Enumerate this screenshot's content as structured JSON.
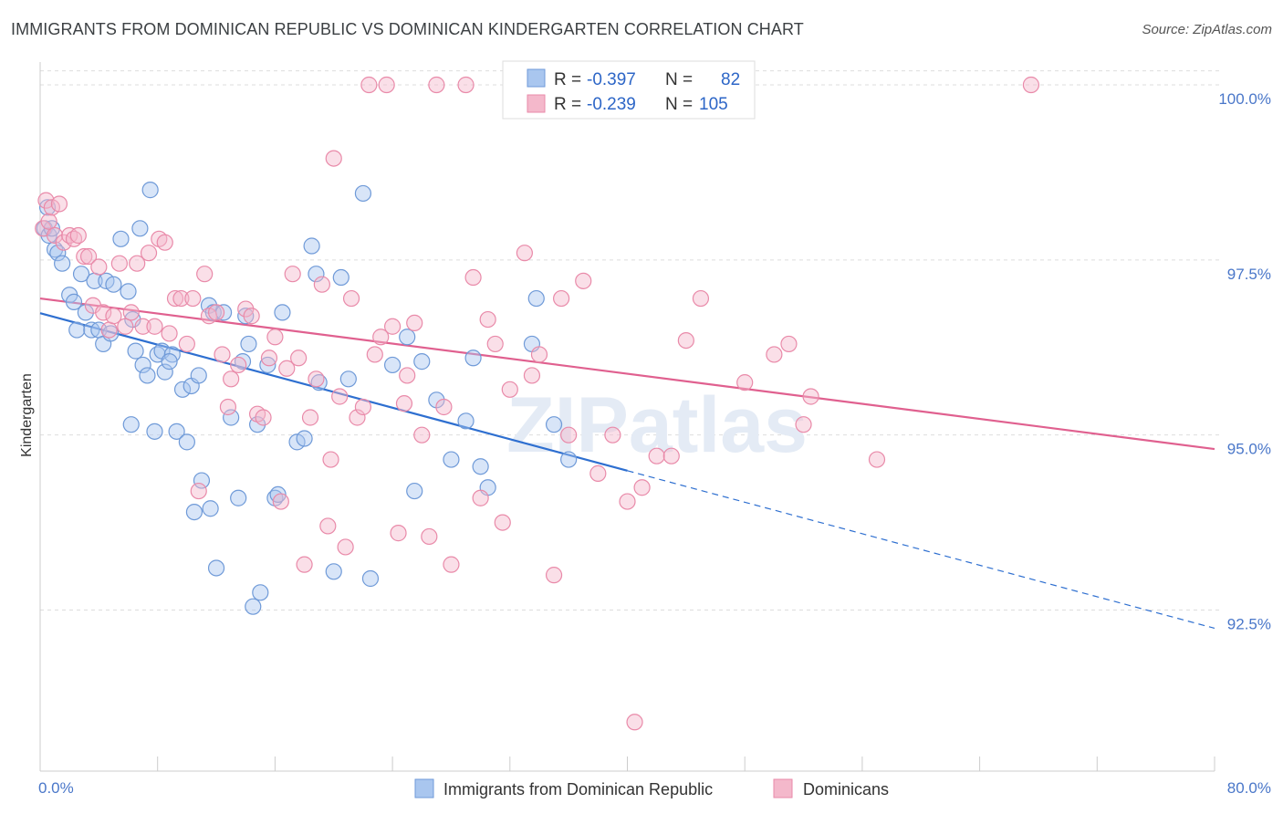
{
  "title": "IMMIGRANTS FROM DOMINICAN REPUBLIC VS DOMINICAN KINDERGARTEN CORRELATION CHART",
  "source": "Source: ZipAtlas.com",
  "watermark": "ZIPatlas",
  "colors": {
    "blue_fill": "#a9c6ef",
    "blue_stroke": "#6f9ad8",
    "blue_line": "#2e6fd0",
    "pink_fill": "#f4b8cb",
    "pink_stroke": "#e98aa9",
    "pink_line": "#e0608f",
    "tick_text": "#4a77c9",
    "grid": "#dddddd"
  },
  "legend": {
    "blue": {
      "r_label": "R =",
      "r_value": "-0.397",
      "n_label": "N =",
      "n_value": "82"
    },
    "pink": {
      "r_label": "R =",
      "r_value": "-0.239",
      "n_label": "N =",
      "n_value": "105"
    }
  },
  "bottom_legend": {
    "blue": "Immigrants from Dominican Republic",
    "pink": "Dominicans"
  },
  "chart_data": {
    "type": "scatter",
    "xlabel": "",
    "ylabel": "Kindergarten",
    "xlim": [
      0,
      80
    ],
    "ylim": [
      90.2,
      100.3
    ],
    "x_tick_labels": [
      "0.0%",
      "80.0%"
    ],
    "y_ticks": [
      92.5,
      95.0,
      97.5,
      100.0
    ],
    "y_tick_labels": [
      "92.5%",
      "95.0%",
      "97.5%",
      "100.0%"
    ],
    "grid": "horizontal dashed",
    "legend_position": "top-center",
    "series": [
      {
        "name": "Immigrants from Dominican Republic",
        "color": "#6f9ad8",
        "trend": {
          "x": [
            0,
            40
          ],
          "y": [
            96.74,
            94.49
          ],
          "extended_to": [
            80,
            92.24
          ]
        },
        "points": [
          [
            0.3,
            97.95
          ],
          [
            0.5,
            98.25
          ],
          [
            0.6,
            97.85
          ],
          [
            0.8,
            97.95
          ],
          [
            1.0,
            97.65
          ],
          [
            1.2,
            97.6
          ],
          [
            1.5,
            97.45
          ],
          [
            2.0,
            97.0
          ],
          [
            2.3,
            96.9
          ],
          [
            2.5,
            96.5
          ],
          [
            2.8,
            97.3
          ],
          [
            3.1,
            96.75
          ],
          [
            3.5,
            96.5
          ],
          [
            3.7,
            97.2
          ],
          [
            4.0,
            96.5
          ],
          [
            4.3,
            96.3
          ],
          [
            4.5,
            97.2
          ],
          [
            4.8,
            96.45
          ],
          [
            5.0,
            97.15
          ],
          [
            5.5,
            97.8
          ],
          [
            6.0,
            97.05
          ],
          [
            6.3,
            96.65
          ],
          [
            6.5,
            96.2
          ],
          [
            6.8,
            97.95
          ],
          [
            7.0,
            96.0
          ],
          [
            7.3,
            95.85
          ],
          [
            7.5,
            98.5
          ],
          [
            7.8,
            95.05
          ],
          [
            8.0,
            96.15
          ],
          [
            8.3,
            96.2
          ],
          [
            8.5,
            95.9
          ],
          [
            9.0,
            96.15
          ],
          [
            9.3,
            95.05
          ],
          [
            9.7,
            95.65
          ],
          [
            10.0,
            94.9
          ],
          [
            10.3,
            95.7
          ],
          [
            10.5,
            93.9
          ],
          [
            11.0,
            94.35
          ],
          [
            11.5,
            96.85
          ],
          [
            11.8,
            96.75
          ],
          [
            12.0,
            93.1
          ],
          [
            12.5,
            96.75
          ],
          [
            13.0,
            95.25
          ],
          [
            13.5,
            94.1
          ],
          [
            13.8,
            96.05
          ],
          [
            14.0,
            96.7
          ],
          [
            14.5,
            92.55
          ],
          [
            14.8,
            95.15
          ],
          [
            15.0,
            92.75
          ],
          [
            15.5,
            96.0
          ],
          [
            16.0,
            94.1
          ],
          [
            16.2,
            94.15
          ],
          [
            16.5,
            96.75
          ],
          [
            17.5,
            94.9
          ],
          [
            18.0,
            94.95
          ],
          [
            18.5,
            97.7
          ],
          [
            18.8,
            97.3
          ],
          [
            19.0,
            95.75
          ],
          [
            20.0,
            93.05
          ],
          [
            21.0,
            95.8
          ],
          [
            22.0,
            98.45
          ],
          [
            22.5,
            92.95
          ],
          [
            24.0,
            96.0
          ],
          [
            25.0,
            96.4
          ],
          [
            25.5,
            94.2
          ],
          [
            26.0,
            96.05
          ],
          [
            27.0,
            95.5
          ],
          [
            28.0,
            94.65
          ],
          [
            29.0,
            95.2
          ],
          [
            29.5,
            96.1
          ],
          [
            30.0,
            94.55
          ],
          [
            30.5,
            94.25
          ],
          [
            33.5,
            96.3
          ],
          [
            33.8,
            96.95
          ],
          [
            35.0,
            95.15
          ],
          [
            36.0,
            94.65
          ],
          [
            10.8,
            95.85
          ],
          [
            11.6,
            93.95
          ],
          [
            14.2,
            96.3
          ],
          [
            20.5,
            97.25
          ],
          [
            8.8,
            96.05
          ],
          [
            6.2,
            95.15
          ]
        ]
      },
      {
        "name": "Dominicans",
        "color": "#e98aa9",
        "trend": {
          "x": [
            0,
            80
          ],
          "y": [
            96.95,
            94.8
          ]
        },
        "points": [
          [
            0.2,
            97.95
          ],
          [
            0.4,
            98.35
          ],
          [
            0.6,
            98.05
          ],
          [
            0.8,
            98.25
          ],
          [
            1.0,
            97.85
          ],
          [
            1.3,
            98.3
          ],
          [
            1.6,
            97.75
          ],
          [
            2.0,
            97.85
          ],
          [
            2.3,
            97.8
          ],
          [
            2.6,
            97.85
          ],
          [
            3.0,
            97.55
          ],
          [
            3.3,
            97.55
          ],
          [
            3.6,
            96.85
          ],
          [
            4.0,
            97.4
          ],
          [
            4.3,
            96.75
          ],
          [
            4.7,
            96.5
          ],
          [
            5.0,
            96.7
          ],
          [
            5.4,
            97.45
          ],
          [
            5.8,
            96.55
          ],
          [
            6.2,
            96.75
          ],
          [
            6.6,
            97.45
          ],
          [
            7.0,
            96.55
          ],
          [
            7.4,
            97.6
          ],
          [
            7.8,
            96.55
          ],
          [
            8.1,
            97.8
          ],
          [
            8.5,
            97.75
          ],
          [
            8.8,
            96.45
          ],
          [
            9.2,
            96.95
          ],
          [
            9.6,
            96.95
          ],
          [
            10.0,
            96.3
          ],
          [
            10.4,
            96.95
          ],
          [
            10.8,
            94.2
          ],
          [
            11.2,
            97.3
          ],
          [
            11.5,
            96.7
          ],
          [
            12.0,
            96.75
          ],
          [
            12.4,
            96.15
          ],
          [
            12.8,
            95.4
          ],
          [
            13.0,
            95.8
          ],
          [
            13.5,
            96.0
          ],
          [
            14.0,
            96.8
          ],
          [
            14.4,
            96.7
          ],
          [
            14.8,
            95.3
          ],
          [
            15.2,
            95.25
          ],
          [
            15.6,
            96.1
          ],
          [
            16.0,
            96.4
          ],
          [
            16.4,
            94.05
          ],
          [
            16.8,
            95.95
          ],
          [
            17.2,
            97.3
          ],
          [
            17.6,
            96.1
          ],
          [
            18.0,
            93.15
          ],
          [
            18.4,
            95.25
          ],
          [
            18.8,
            95.8
          ],
          [
            19.2,
            97.15
          ],
          [
            19.6,
            93.7
          ],
          [
            20.0,
            98.95
          ],
          [
            20.4,
            95.55
          ],
          [
            20.8,
            93.4
          ],
          [
            21.2,
            96.95
          ],
          [
            21.6,
            95.25
          ],
          [
            22.0,
            95.4
          ],
          [
            22.4,
            100.0
          ],
          [
            22.8,
            96.15
          ],
          [
            23.2,
            96.4
          ],
          [
            23.6,
            100.0
          ],
          [
            24.0,
            96.55
          ],
          [
            24.4,
            93.6
          ],
          [
            25.0,
            95.85
          ],
          [
            25.5,
            96.6
          ],
          [
            26.0,
            95.0
          ],
          [
            26.5,
            93.55
          ],
          [
            27.0,
            100.0
          ],
          [
            27.5,
            95.4
          ],
          [
            28.0,
            93.15
          ],
          [
            29.0,
            100.0
          ],
          [
            29.5,
            97.25
          ],
          [
            30.0,
            94.1
          ],
          [
            30.5,
            96.65
          ],
          [
            31.0,
            96.3
          ],
          [
            31.5,
            93.75
          ],
          [
            32.0,
            95.65
          ],
          [
            33.0,
            97.6
          ],
          [
            33.5,
            95.85
          ],
          [
            34.0,
            96.15
          ],
          [
            35.0,
            93.0
          ],
          [
            35.5,
            96.95
          ],
          [
            36.0,
            95.0
          ],
          [
            37.0,
            97.2
          ],
          [
            38.0,
            94.45
          ],
          [
            39.0,
            95.0
          ],
          [
            40.0,
            94.05
          ],
          [
            41.0,
            94.25
          ],
          [
            42.0,
            94.7
          ],
          [
            43.0,
            94.7
          ],
          [
            44.0,
            96.35
          ],
          [
            45.0,
            96.95
          ],
          [
            48.0,
            95.75
          ],
          [
            50.0,
            96.15
          ],
          [
            51.0,
            96.3
          ],
          [
            52.0,
            95.15
          ],
          [
            52.5,
            95.55
          ],
          [
            57.0,
            94.65
          ],
          [
            67.5,
            100.0
          ],
          [
            40.5,
            90.9
          ],
          [
            24.8,
            95.45
          ],
          [
            19.8,
            94.65
          ]
        ]
      }
    ]
  }
}
